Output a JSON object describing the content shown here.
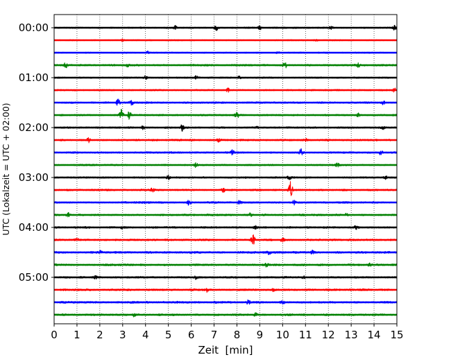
{
  "chart_data": {
    "type": "line",
    "title": "",
    "xlabel": "Zeit  [min]",
    "ylabel": "UTC (Lokalzeit = UTC + 02:00)",
    "xlim": [
      0,
      15
    ],
    "x_ticks": [
      0,
      1,
      2,
      3,
      4,
      5,
      6,
      7,
      8,
      9,
      10,
      11,
      12,
      13,
      14,
      15
    ],
    "y_tick_labels": [
      "00:00",
      "01:00",
      "02:00",
      "03:00",
      "04:00",
      "05:00"
    ],
    "grid": "vertical dotted at each minute",
    "trace_interval_min": 15,
    "trace_colors": [
      "#000000",
      "#ff0000",
      "#0000ff",
      "#008000"
    ],
    "traces": [
      {
        "start": "00:00",
        "color": "#000000",
        "noise": 0.18,
        "events": [
          [
            5.3,
            0.6
          ],
          [
            7.1,
            0.7
          ],
          [
            9.0,
            0.5
          ],
          [
            12.1,
            0.4
          ],
          [
            14.9,
            0.6
          ]
        ]
      },
      {
        "start": "00:15",
        "color": "#ff0000",
        "noise": 0.15,
        "events": [
          [
            3.0,
            0.3
          ],
          [
            11.5,
            0.3
          ]
        ]
      },
      {
        "start": "00:30",
        "color": "#0000ff",
        "noise": 0.15,
        "events": [
          [
            4.1,
            0.3
          ],
          [
            9.8,
            0.3
          ]
        ]
      },
      {
        "start": "00:45",
        "color": "#008000",
        "noise": 0.22,
        "events": [
          [
            0.5,
            0.8
          ],
          [
            3.2,
            0.4
          ],
          [
            10.1,
            0.8
          ],
          [
            13.3,
            0.5
          ]
        ]
      },
      {
        "start": "01:00",
        "color": "#000000",
        "noise": 0.18,
        "events": [
          [
            4.0,
            0.6
          ],
          [
            6.2,
            0.5
          ],
          [
            8.1,
            0.4
          ]
        ]
      },
      {
        "start": "01:15",
        "color": "#ff0000",
        "noise": 0.18,
        "events": [
          [
            7.6,
            0.7
          ],
          [
            14.9,
            0.7
          ]
        ]
      },
      {
        "start": "01:30",
        "color": "#0000ff",
        "noise": 0.2,
        "events": [
          [
            2.8,
            0.8
          ],
          [
            3.4,
            0.6
          ],
          [
            14.4,
            0.5
          ]
        ]
      },
      {
        "start": "01:45",
        "color": "#008000",
        "noise": 0.2,
        "events": [
          [
            2.95,
            1.6
          ],
          [
            3.3,
            1.1
          ],
          [
            8.0,
            0.9
          ],
          [
            13.3,
            0.5
          ]
        ]
      },
      {
        "start": "02:00",
        "color": "#000000",
        "noise": 0.2,
        "events": [
          [
            3.9,
            0.6
          ],
          [
            5.6,
            0.9
          ],
          [
            8.9,
            0.4
          ],
          [
            14.4,
            0.4
          ]
        ]
      },
      {
        "start": "02:15",
        "color": "#ff0000",
        "noise": 0.22,
        "events": [
          [
            1.5,
            0.7
          ],
          [
            7.2,
            0.5
          ],
          [
            11.0,
            0.4
          ]
        ]
      },
      {
        "start": "02:30",
        "color": "#0000ff",
        "noise": 0.22,
        "events": [
          [
            7.8,
            0.6
          ],
          [
            10.8,
            0.9
          ],
          [
            14.3,
            0.7
          ]
        ]
      },
      {
        "start": "02:45",
        "color": "#008000",
        "noise": 0.2,
        "events": [
          [
            6.2,
            0.6
          ],
          [
            12.4,
            0.5
          ]
        ]
      },
      {
        "start": "03:00",
        "color": "#000000",
        "noise": 0.2,
        "events": [
          [
            5.0,
            0.6
          ],
          [
            10.3,
            0.6
          ],
          [
            14.5,
            0.5
          ]
        ]
      },
      {
        "start": "03:15",
        "color": "#ff0000",
        "noise": 0.22,
        "events": [
          [
            10.35,
            2.4
          ],
          [
            4.3,
            0.5
          ],
          [
            7.4,
            0.5
          ]
        ]
      },
      {
        "start": "03:30",
        "color": "#0000ff",
        "noise": 0.22,
        "events": [
          [
            5.9,
            0.8
          ],
          [
            8.1,
            0.5
          ],
          [
            10.5,
            0.6
          ]
        ]
      },
      {
        "start": "03:45",
        "color": "#008000",
        "noise": 0.22,
        "events": [
          [
            0.6,
            0.5
          ],
          [
            8.6,
            0.5
          ],
          [
            12.8,
            0.5
          ]
        ]
      },
      {
        "start": "04:00",
        "color": "#000000",
        "noise": 0.22,
        "events": [
          [
            3.0,
            0.5
          ],
          [
            8.8,
            0.5
          ],
          [
            13.2,
            0.4
          ]
        ]
      },
      {
        "start": "04:15",
        "color": "#ff0000",
        "noise": 0.22,
        "events": [
          [
            8.7,
            1.6
          ],
          [
            10.0,
            0.5
          ],
          [
            1.0,
            0.4
          ]
        ]
      },
      {
        "start": "04:30",
        "color": "#0000ff",
        "noise": 0.24,
        "events": [
          [
            2.0,
            0.4
          ],
          [
            9.4,
            0.5
          ],
          [
            11.3,
            0.4
          ]
        ]
      },
      {
        "start": "04:45",
        "color": "#008000",
        "noise": 0.24,
        "events": [
          [
            9.3,
            0.5
          ],
          [
            13.8,
            0.4
          ]
        ]
      },
      {
        "start": "05:00",
        "color": "#000000",
        "noise": 0.22,
        "events": [
          [
            1.8,
            0.4
          ],
          [
            6.2,
            0.5
          ],
          [
            10.9,
            0.4
          ]
        ]
      },
      {
        "start": "05:15",
        "color": "#ff0000",
        "noise": 0.24,
        "events": [
          [
            6.7,
            0.5
          ],
          [
            9.6,
            0.4
          ]
        ]
      },
      {
        "start": "05:30",
        "color": "#0000ff",
        "noise": 0.24,
        "events": [
          [
            8.5,
            0.6
          ],
          [
            10.0,
            0.5
          ]
        ]
      },
      {
        "start": "05:45",
        "color": "#008000",
        "noise": 0.24,
        "events": [
          [
            3.5,
            0.4
          ],
          [
            8.8,
            0.5
          ]
        ]
      }
    ]
  }
}
